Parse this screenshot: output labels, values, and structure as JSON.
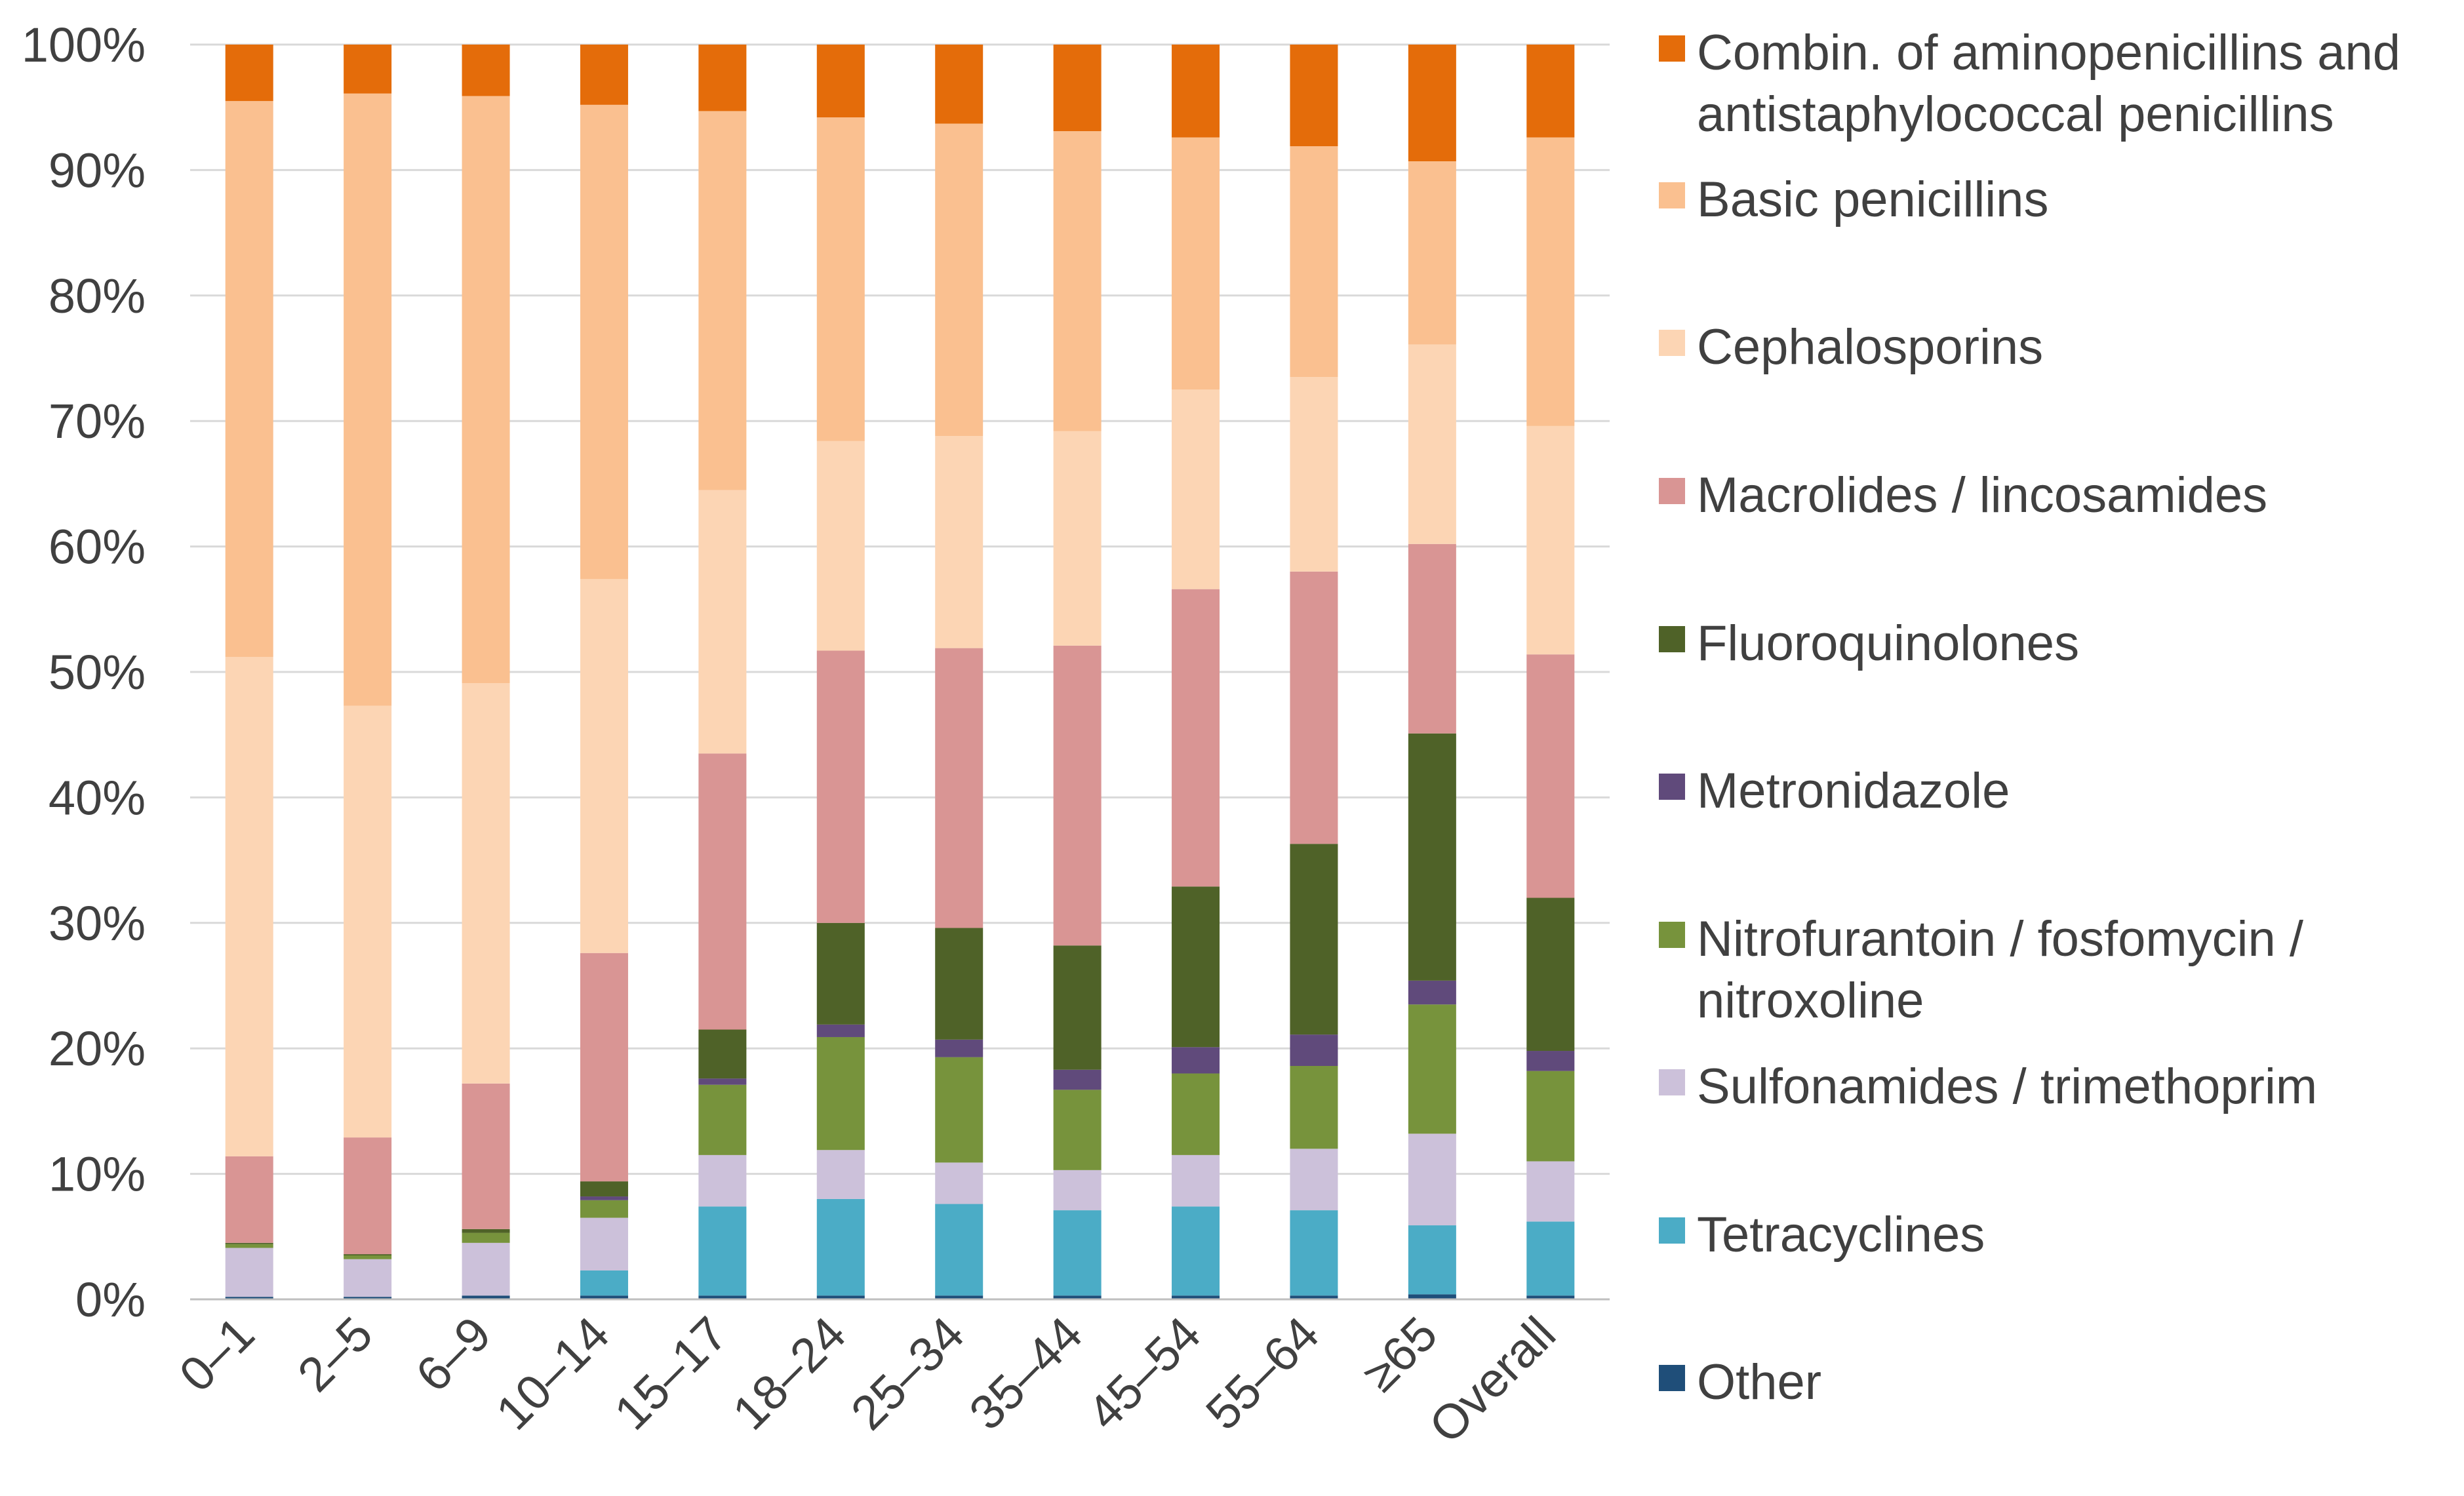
{
  "chart_data": {
    "type": "bar",
    "stacked": true,
    "title": "",
    "xlabel": "",
    "ylabel": "",
    "ylim": [
      0,
      100
    ],
    "y_ticks": [
      "0%",
      "10%",
      "20%",
      "30%",
      "40%",
      "50%",
      "60%",
      "70%",
      "80%",
      "90%",
      "100%"
    ],
    "grid": true,
    "legend_position": "right",
    "categories": [
      "0–1",
      "2–5",
      "6–9",
      "10–14",
      "15–17",
      "18–24",
      "25–34",
      "35–44",
      "45–54",
      "55–64",
      "≥65",
      "Overall"
    ],
    "series": [
      {
        "name": "Other",
        "color": "#1f4e79",
        "values": [
          0.2,
          0.2,
          0.3,
          0.3,
          0.3,
          0.3,
          0.3,
          0.3,
          0.3,
          0.3,
          0.4,
          0.3
        ]
      },
      {
        "name": "Tetracyclines",
        "color": "#4bacc6",
        "values": [
          0.0,
          0.0,
          0.0,
          2.0,
          7.1,
          7.7,
          7.3,
          6.8,
          7.1,
          6.8,
          5.5,
          5.9
        ]
      },
      {
        "name": "Sulfonamides / trimethoprim",
        "color": "#ccc1da",
        "values": [
          3.9,
          3.0,
          4.2,
          4.2,
          4.1,
          3.9,
          3.3,
          3.2,
          4.1,
          4.9,
          7.3,
          4.8
        ]
      },
      {
        "name": "Nitrofurantoin / fosfomycin / nitroxoline",
        "color": "#77933c",
        "values": [
          0.3,
          0.3,
          0.8,
          1.4,
          5.6,
          9.0,
          8.4,
          6.4,
          6.5,
          6.6,
          10.3,
          7.2
        ]
      },
      {
        "name": "Metronidazole",
        "color": "#604a7b",
        "values": [
          0.0,
          0.0,
          0.0,
          0.3,
          0.5,
          1.0,
          1.4,
          1.6,
          2.1,
          2.5,
          1.9,
          1.6
        ]
      },
      {
        "name": "Fluoroquinolones",
        "color": "#4f6228",
        "values": [
          0.1,
          0.1,
          0.3,
          1.2,
          3.9,
          8.1,
          8.9,
          9.9,
          12.8,
          15.2,
          19.7,
          12.2
        ]
      },
      {
        "name": "Macrolides / lincosamides",
        "color": "#d99594",
        "values": [
          6.9,
          9.3,
          11.6,
          18.2,
          22.0,
          21.7,
          22.3,
          23.9,
          23.7,
          21.7,
          15.1,
          19.4
        ]
      },
      {
        "name": "Cephalosporins",
        "color": "#fcd5b4",
        "values": [
          39.8,
          34.4,
          31.9,
          29.8,
          21.0,
          16.7,
          16.9,
          17.1,
          15.9,
          15.5,
          15.9,
          18.2
        ]
      },
      {
        "name": "Basic penicillins",
        "color": "#fac090",
        "values": [
          44.3,
          48.8,
          46.8,
          37.8,
          30.2,
          25.8,
          24.9,
          23.9,
          20.1,
          18.4,
          14.6,
          23.0
        ]
      },
      {
        "name": "Combin. of aminopenicillins and antistaphylococcal penicillins",
        "color": "#e46c0a",
        "values": [
          4.5,
          3.9,
          4.1,
          4.8,
          5.3,
          5.8,
          6.3,
          6.9,
          7.4,
          8.1,
          9.3,
          7.4
        ]
      }
    ],
    "legend": [
      {
        "lines": [
          "Combin. of aminopenicillins and",
          "antistaphylococcal penicillins"
        ],
        "color": "#e46c0a"
      },
      {
        "lines": [
          "Basic penicillins"
        ],
        "color": "#fac090"
      },
      {
        "lines": [
          "Cephalosporins"
        ],
        "color": "#fcd5b4"
      },
      {
        "lines": [
          "Macrolides / lincosamides"
        ],
        "color": "#d99594"
      },
      {
        "lines": [
          "Fluoroquinolones"
        ],
        "color": "#4f6228"
      },
      {
        "lines": [
          "Metronidazole"
        ],
        "color": "#604a7b"
      },
      {
        "lines": [
          "Nitrofurantoin / fosfomycin /",
          "nitroxoline"
        ],
        "color": "#77933c"
      },
      {
        "lines": [
          "Sulfonamides / trimethoprim"
        ],
        "color": "#ccc1da"
      },
      {
        "lines": [
          "Tetracyclines"
        ],
        "color": "#4bacc6"
      },
      {
        "lines": [
          "Other"
        ],
        "color": "#1f4e79"
      }
    ]
  }
}
